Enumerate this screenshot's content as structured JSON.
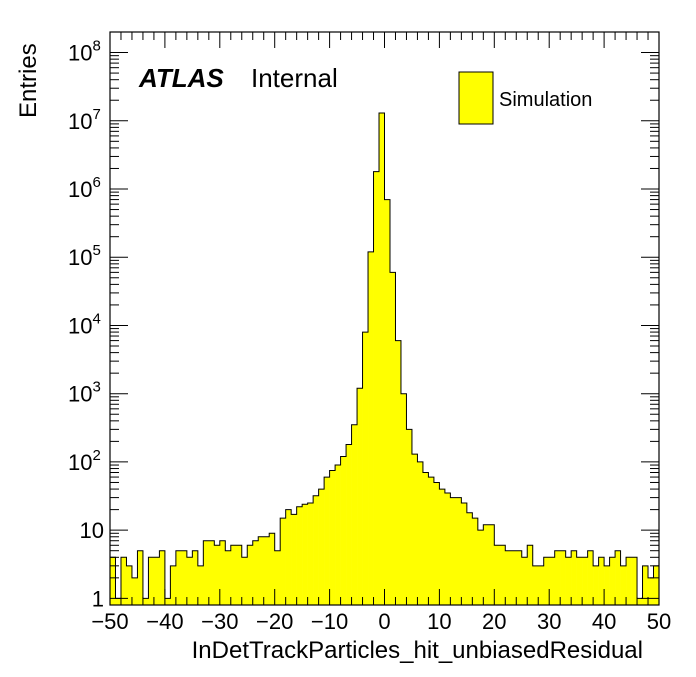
{
  "chart_data": {
    "type": "bar",
    "subtype": "histogram",
    "xlabel": "InDetTrackParticles_hit_unbiasedResidual",
    "ylabel": "Entries",
    "xlim": [
      -50,
      50
    ],
    "ylim": [
      0.8,
      200000000
    ],
    "yscale": "log",
    "bin_width": 1,
    "bins_low_edges": [
      -50,
      -49,
      -48,
      -47,
      -46,
      -45,
      -44,
      -43,
      -42,
      -41,
      -40,
      -39,
      -38,
      -37,
      -36,
      -35,
      -34,
      -33,
      -32,
      -31,
      -30,
      -29,
      -28,
      -27,
      -26,
      -25,
      -24,
      -23,
      -22,
      -21,
      -20,
      -19,
      -18,
      -17,
      -16,
      -15,
      -14,
      -13,
      -12,
      -11,
      -10,
      -9,
      -8,
      -7,
      -6,
      -5,
      -4,
      -3,
      -2,
      -1,
      0,
      1,
      2,
      3,
      4,
      5,
      6,
      7,
      8,
      9,
      10,
      11,
      12,
      13,
      14,
      15,
      16,
      17,
      18,
      19,
      20,
      21,
      22,
      23,
      24,
      25,
      26,
      27,
      28,
      29,
      30,
      31,
      32,
      33,
      34,
      35,
      36,
      37,
      38,
      39,
      40,
      41,
      42,
      43,
      44,
      45,
      46,
      47,
      48,
      49
    ],
    "values": [
      4,
      1,
      4,
      3,
      2,
      5,
      1,
      4,
      4,
      5,
      1,
      3,
      5,
      5,
      4,
      5,
      3,
      7,
      7,
      6,
      7,
      5,
      6,
      6,
      4,
      6,
      7,
      8,
      8,
      9,
      5,
      15,
      20,
      17,
      22,
      24,
      25,
      32,
      40,
      60,
      75,
      90,
      120,
      180,
      350,
      1200,
      8000,
      120000,
      1800000,
      13000000,
      700000,
      60000,
      6000,
      1000,
      300,
      130,
      100,
      70,
      60,
      50,
      40,
      35,
      30,
      30,
      25,
      18,
      15,
      10,
      12,
      12,
      6,
      6,
      5,
      5,
      5,
      4,
      6,
      3,
      3,
      4,
      4,
      5,
      5,
      4,
      5,
      4,
      4,
      5,
      3,
      4,
      3,
      4,
      5,
      3,
      4,
      4,
      1,
      3,
      2,
      3
    ],
    "series": [
      {
        "name": "Simulation",
        "color": "#ffff00"
      }
    ],
    "yticks": [
      "1",
      "10",
      "10^2",
      "10^3",
      "10^4",
      "10^5",
      "10^6",
      "10^7",
      "10^8"
    ],
    "xticks": [
      "−50",
      "−40",
      "−30",
      "−20",
      "−10",
      "0",
      "10",
      "20",
      "30",
      "40",
      "50"
    ],
    "annotations": {
      "experiment": "ATLAS",
      "status": "Internal"
    },
    "legend": {
      "entries": [
        "Simulation"
      ],
      "placement": "top-right"
    },
    "grid": false
  }
}
